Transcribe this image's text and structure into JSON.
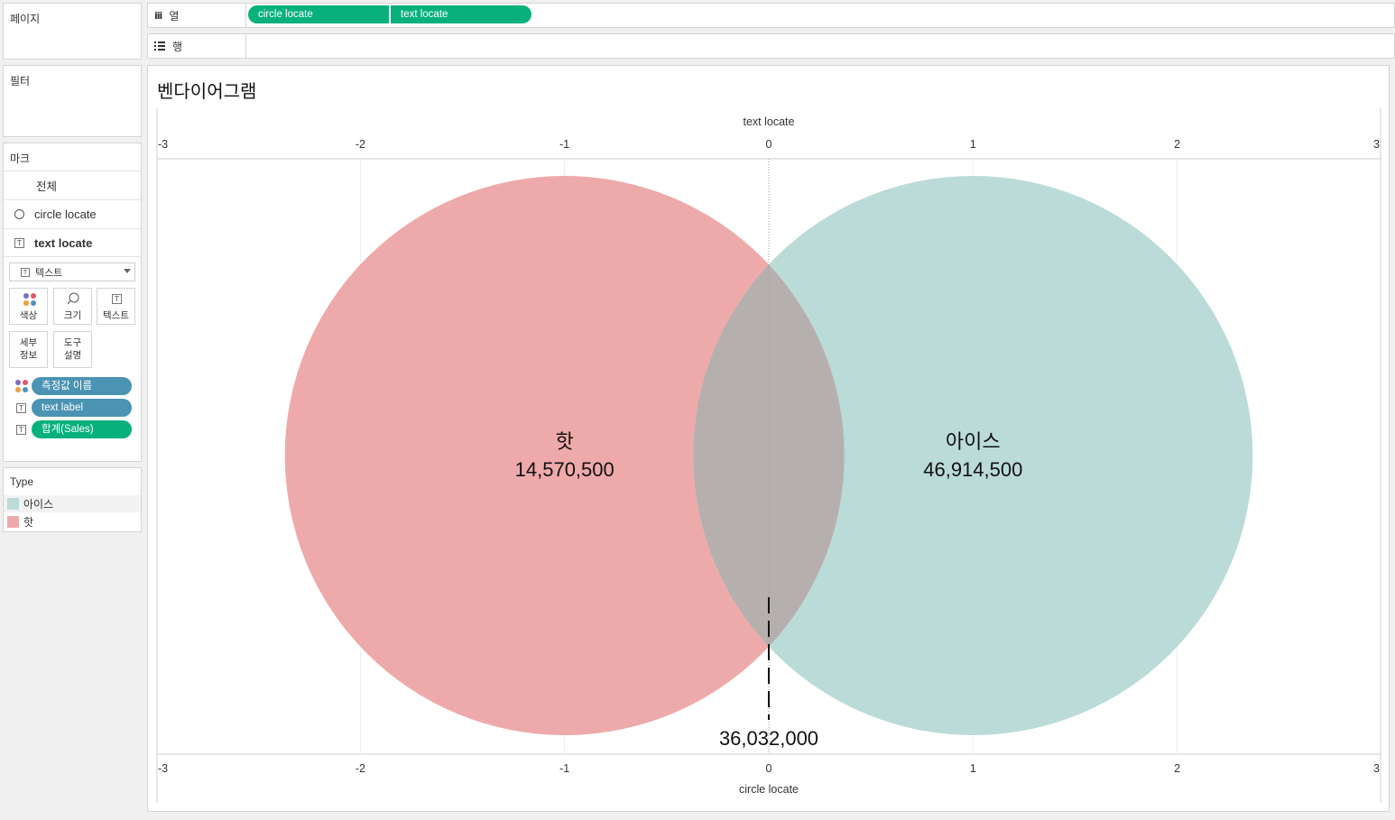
{
  "side": {
    "pages_title": "페이지",
    "filters_title": "필터",
    "marks": {
      "title": "마크",
      "all": "전체",
      "layers": [
        "circle locate",
        "text locate"
      ],
      "mark_type": "텍스트",
      "buttons": {
        "color": "색상",
        "size": "크기",
        "text": "텍스트",
        "detail": "세부 정보",
        "tooltip": "도구 설명"
      },
      "pills": [
        "측정값 이름",
        "text label",
        "합계(Sales)"
      ]
    },
    "legend": {
      "title": "Type",
      "items": [
        {
          "label": "아이스",
          "color": "#bbdbd8"
        },
        {
          "label": "핫",
          "color": "#eeaaaa"
        }
      ]
    }
  },
  "shelves": {
    "columns_label": "열",
    "columns_pills": [
      "circle locate",
      "text locate"
    ],
    "rows_label": "행"
  },
  "chart": {
    "title": "벤다이어그램",
    "top_axis_title": "text locate",
    "bottom_axis_title": "circle locate",
    "ticks": [
      "-3",
      "-2",
      "-1",
      "0",
      "1",
      "2",
      "3"
    ]
  },
  "chart_data": {
    "type": "scatter",
    "title": "벤다이어그램",
    "xlabel": "circle locate",
    "x2label": "text locate",
    "xlim": [
      -3,
      3
    ],
    "series": [
      {
        "name": "핫",
        "circle_center_x": -1,
        "label_value": "14,570,500",
        "color": "#eeaaaa"
      },
      {
        "name": "아이스",
        "circle_center_x": 1,
        "label_value": "46,914,500",
        "color": "#bbdbd8"
      }
    ],
    "intersection": {
      "x": 0,
      "label_value": "36,032,000",
      "overlap_color": "#b5b0ae"
    }
  }
}
